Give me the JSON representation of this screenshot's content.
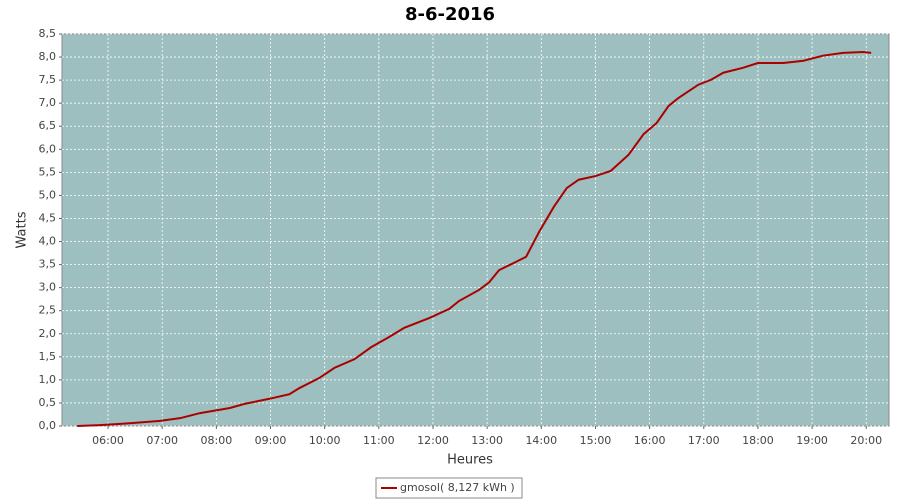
{
  "chart_data": {
    "type": "line",
    "title": "8-6-2016",
    "x_label": "Heures",
    "y_label": "Watts",
    "x": [
      5.43,
      5.85,
      6.4,
      6.96,
      7.33,
      7.7,
      8.25,
      8.52,
      8.98,
      9.35,
      9.53,
      9.9,
      10.18,
      10.55,
      10.86,
      11.19,
      11.47,
      11.93,
      12.3,
      12.48,
      12.85,
      13.04,
      13.22,
      13.5,
      13.72,
      13.96,
      14.23,
      14.47,
      14.69,
      15.0,
      15.28,
      15.61,
      15.89,
      16.13,
      16.35,
      16.53,
      16.9,
      17.14,
      17.36,
      17.73,
      18.0,
      18.47,
      18.84,
      19.2,
      19.57,
      19.94,
      20.09
    ],
    "series": [
      {
        "name": "gmosol( 8,127 kWh )",
        "color": "#aa0000",
        "values": [
          0,
          0.02,
          0.06,
          0.11,
          0.17,
          0.28,
          0.39,
          0.48,
          0.59,
          0.69,
          0.82,
          1.04,
          1.26,
          1.45,
          1.71,
          1.93,
          2.13,
          2.34,
          2.54,
          2.71,
          2.95,
          3.12,
          3.38,
          3.54,
          3.67,
          4.21,
          4.75,
          5.16,
          5.34,
          5.42,
          5.53,
          5.88,
          6.33,
          6.57,
          6.94,
          7.11,
          7.4,
          7.51,
          7.66,
          7.77,
          7.87,
          7.87,
          7.92,
          8.03,
          8.09,
          8.11,
          8.09
        ]
      }
    ],
    "xlim": [
      5.15,
      20.42
    ],
    "xticks": [
      {
        "value": 6,
        "label": "06:00"
      },
      {
        "value": 7,
        "label": "07:00"
      },
      {
        "value": 8,
        "label": "08:00"
      },
      {
        "value": 9,
        "label": "09:00"
      },
      {
        "value": 10,
        "label": "10:00"
      },
      {
        "value": 11,
        "label": "11:00"
      },
      {
        "value": 12,
        "label": "12:00"
      },
      {
        "value": 13,
        "label": "13:00"
      },
      {
        "value": 14,
        "label": "14:00"
      },
      {
        "value": 15,
        "label": "15:00"
      },
      {
        "value": 16,
        "label": "16:00"
      },
      {
        "value": 17,
        "label": "17:00"
      },
      {
        "value": 18,
        "label": "18:00"
      },
      {
        "value": 19,
        "label": "19:00"
      },
      {
        "value": 20,
        "label": "20:00"
      }
    ],
    "ylim": [
      0,
      8.5
    ],
    "yticks": [
      {
        "value": 0,
        "label": "0,0"
      },
      {
        "value": 0.5,
        "label": "0,5"
      },
      {
        "value": 1,
        "label": "1,0"
      },
      {
        "value": 1.5,
        "label": "1,5"
      },
      {
        "value": 2,
        "label": "2,0"
      },
      {
        "value": 2.5,
        "label": "2,5"
      },
      {
        "value": 3,
        "label": "3,0"
      },
      {
        "value": 3.5,
        "label": "3,5"
      },
      {
        "value": 4,
        "label": "4,0"
      },
      {
        "value": 4.5,
        "label": "4,5"
      },
      {
        "value": 5,
        "label": "5,0"
      },
      {
        "value": 5.5,
        "label": "5,5"
      },
      {
        "value": 6,
        "label": "6,0"
      },
      {
        "value": 6.5,
        "label": "6,5"
      },
      {
        "value": 7,
        "label": "7,0"
      },
      {
        "value": 7.5,
        "label": "7,5"
      },
      {
        "value": 8,
        "label": "8,0"
      },
      {
        "value": 8.5,
        "label": "8,5"
      }
    ],
    "grid": true,
    "plot_background": "#9ebfbf",
    "legend": "bottom"
  }
}
